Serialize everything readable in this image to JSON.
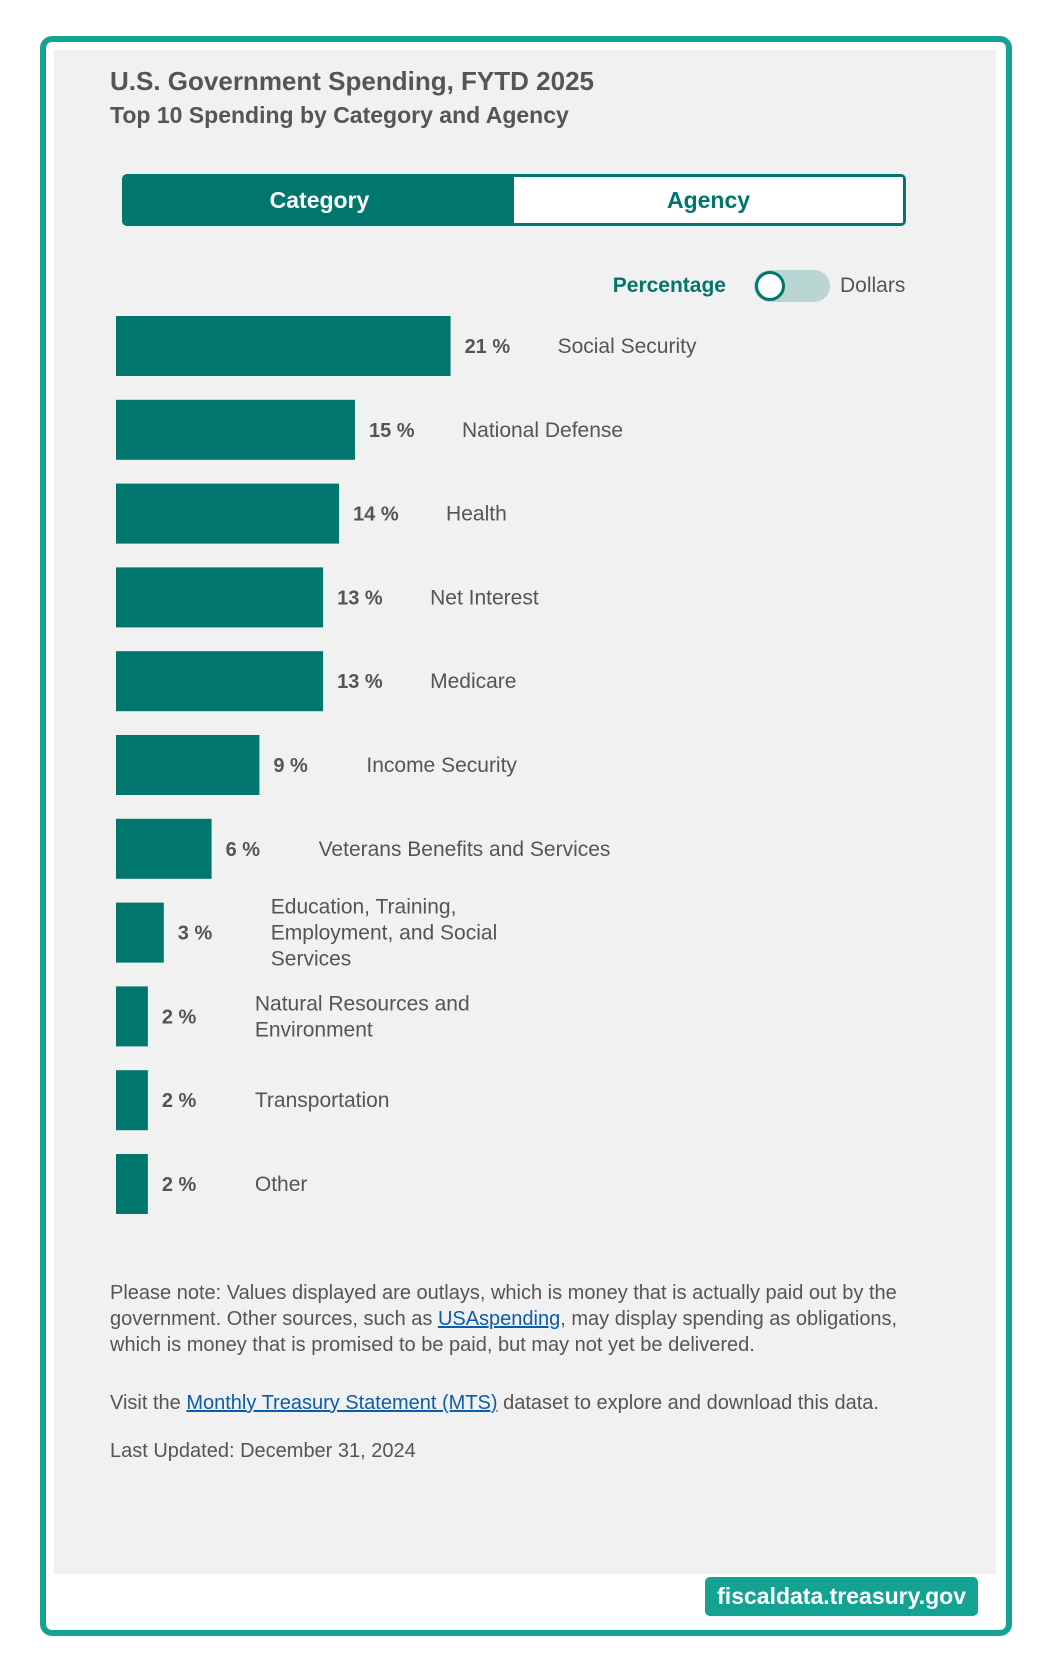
{
  "header": {
    "title": "U.S. Government Spending, FYTD 2025",
    "subtitle": "Top 10 Spending by Category and Agency"
  },
  "tabs": [
    {
      "label": "Category",
      "active": true
    },
    {
      "label": "Agency",
      "active": false
    }
  ],
  "toggle": {
    "left_label": "Percentage",
    "right_label": "Dollars",
    "selected": "Percentage"
  },
  "chart_data": {
    "type": "bar",
    "orientation": "horizontal",
    "categories": [
      "Social Security",
      "National Defense",
      "Health",
      "Net Interest",
      "Medicare",
      "Income Security",
      "Veterans Benefits and Services",
      "Education, Training, Employment, and Social Services",
      "Natural Resources and Environment",
      "Transportation",
      "Other"
    ],
    "label_lines": [
      [
        "Social Security"
      ],
      [
        "National Defense"
      ],
      [
        "Health"
      ],
      [
        "Net Interest"
      ],
      [
        "Medicare"
      ],
      [
        "Income Security"
      ],
      [
        "Veterans Benefits and Services"
      ],
      [
        "Education, Training,",
        "Employment, and Social",
        "Services"
      ],
      [
        "Natural Resources and",
        "Environment"
      ],
      [
        "Transportation"
      ],
      [
        "Other"
      ]
    ],
    "values": [
      21,
      15,
      14,
      13,
      13,
      9,
      6,
      3,
      2,
      2,
      2
    ],
    "value_labels": [
      "21 %",
      "15 %",
      "14 %",
      "13 %",
      "13 %",
      "9 %",
      "6 %",
      "3 %",
      "2 %",
      "2 %",
      "2 %"
    ],
    "unit": "%",
    "xlim": [
      0,
      59
    ],
    "bar_color": "#00766c",
    "grid": false,
    "legend": false
  },
  "notes": {
    "note_before": "Please note: Values displayed are outlays, which is money that is actually paid out by the government. Other sources, such as ",
    "note_link": "USAspending",
    "note_after": ", may display spending as obligations, which is money that is promised to be paid, but may not yet be delivered.",
    "visit_before": "Visit the ",
    "visit_link": "Monthly Treasury Statement (MTS)",
    "visit_after": " dataset to explore and download this data.",
    "last_updated": "Last Updated: December 31, 2024"
  },
  "footer": {
    "brand": "fiscaldata.treasury.gov"
  },
  "colors": {
    "accent": "#00766c",
    "frame": "#14a293",
    "text": "#555555",
    "link": "#0b5cab"
  }
}
